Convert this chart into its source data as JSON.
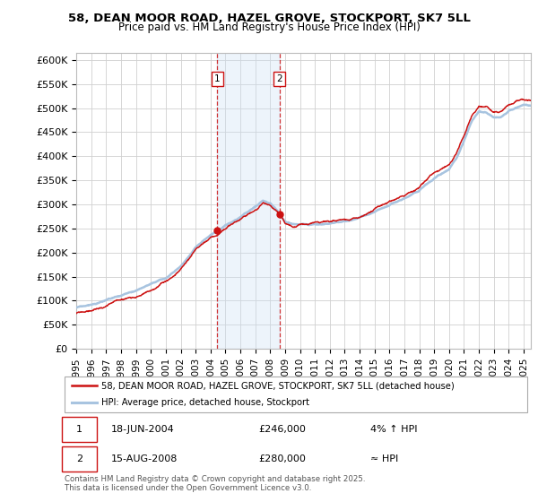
{
  "title_line1": "58, DEAN MOOR ROAD, HAZEL GROVE, STOCKPORT, SK7 5LL",
  "title_line2": "Price paid vs. HM Land Registry's House Price Index (HPI)",
  "ylabel_ticks": [
    "£0",
    "£50K",
    "£100K",
    "£150K",
    "£200K",
    "£250K",
    "£300K",
    "£350K",
    "£400K",
    "£450K",
    "£500K",
    "£550K",
    "£600K"
  ],
  "ytick_values": [
    0,
    50000,
    100000,
    150000,
    200000,
    250000,
    300000,
    350000,
    400000,
    450000,
    500000,
    550000,
    600000
  ],
  "ylim": [
    0,
    615000
  ],
  "xlim_start": 1995.0,
  "xlim_end": 2025.5,
  "hpi_color": "#a8c4e0",
  "price_color": "#cc1111",
  "background_color": "#ffffff",
  "plot_bg_color": "#ffffff",
  "grid_color": "#d0d0d0",
  "shade_color": "#cce0f5",
  "transaction1_x": 2004.46,
  "transaction1_y": 246000,
  "transaction2_x": 2008.62,
  "transaction2_y": 280000,
  "legend_label_red": "58, DEAN MOOR ROAD, HAZEL GROVE, STOCKPORT, SK7 5LL (detached house)",
  "legend_label_blue": "HPI: Average price, detached house, Stockport",
  "annotation1_date": "18-JUN-2004",
  "annotation1_price": "£246,000",
  "annotation1_hpi": "4% ↑ HPI",
  "annotation2_date": "15-AUG-2008",
  "annotation2_price": "£280,000",
  "annotation2_hpi": "≈ HPI",
  "footer": "Contains HM Land Registry data © Crown copyright and database right 2025.\nThis data is licensed under the Open Government Licence v3.0.",
  "xtick_years": [
    1995,
    1996,
    1997,
    1998,
    1999,
    2000,
    2001,
    2002,
    2003,
    2004,
    2005,
    2006,
    2007,
    2008,
    2009,
    2010,
    2011,
    2012,
    2013,
    2014,
    2015,
    2016,
    2017,
    2018,
    2019,
    2020,
    2021,
    2022,
    2023,
    2024,
    2025
  ]
}
